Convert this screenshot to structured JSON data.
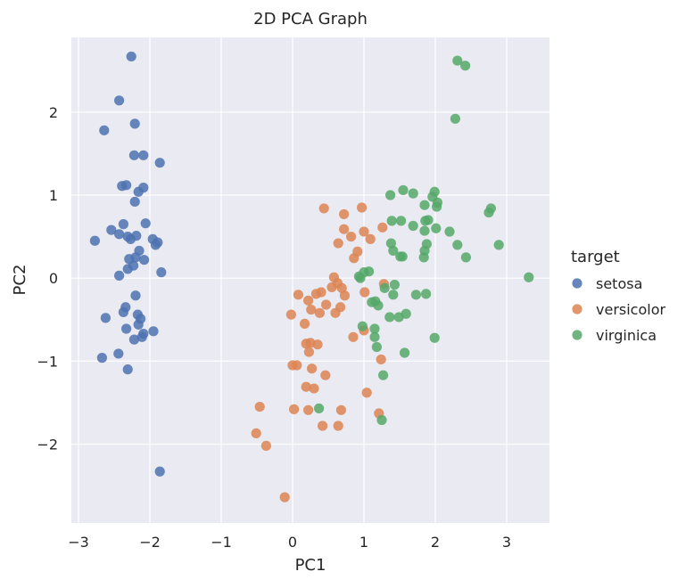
{
  "chart_data": {
    "type": "scatter",
    "title": "2D PCA Graph",
    "xlabel": "PC1",
    "ylabel": "PC2",
    "xlim": [
      -3.1,
      3.6
    ],
    "ylim": [
      -2.95,
      2.9
    ],
    "xticks": [
      -3,
      -2,
      -1,
      0,
      1,
      2,
      3
    ],
    "yticks": [
      -2,
      -1,
      0,
      1,
      2
    ],
    "xtick_labels": [
      "−3",
      "−2",
      "−1",
      "0",
      "1",
      "2",
      "3"
    ],
    "ytick_labels": [
      "−2",
      "−1",
      "0",
      "1",
      "2"
    ],
    "grid": true,
    "legend": {
      "title": "target",
      "placement": "right"
    },
    "series": [
      {
        "name": "setosa",
        "color": "#4c72b0",
        "points": [
          [
            -2.26,
            2.67
          ],
          [
            -2.43,
            2.14
          ],
          [
            -2.64,
            1.78
          ],
          [
            -2.21,
            1.86
          ],
          [
            -2.22,
            1.48
          ],
          [
            -2.09,
            1.48
          ],
          [
            -1.86,
            1.39
          ],
          [
            -2.39,
            1.11
          ],
          [
            -2.33,
            1.12
          ],
          [
            -2.16,
            1.04
          ],
          [
            -2.09,
            1.09
          ],
          [
            -2.21,
            0.92
          ],
          [
            -2.37,
            0.65
          ],
          [
            -2.54,
            0.58
          ],
          [
            -2.06,
            0.66
          ],
          [
            -2.43,
            0.53
          ],
          [
            -2.27,
            0.47
          ],
          [
            -2.19,
            0.51
          ],
          [
            -2.31,
            0.5
          ],
          [
            -1.96,
            0.47
          ],
          [
            -2.77,
            0.45
          ],
          [
            -1.89,
            0.43
          ],
          [
            -1.92,
            0.4
          ],
          [
            -2.15,
            0.33
          ],
          [
            -2.2,
            0.25
          ],
          [
            -2.29,
            0.23
          ],
          [
            -2.08,
            0.22
          ],
          [
            -2.23,
            0.15
          ],
          [
            -2.31,
            0.11
          ],
          [
            -2.43,
            0.03
          ],
          [
            -1.84,
            0.07
          ],
          [
            -2.2,
            -0.21
          ],
          [
            -2.34,
            -0.35
          ],
          [
            -2.37,
            -0.41
          ],
          [
            -2.62,
            -0.48
          ],
          [
            -2.17,
            -0.44
          ],
          [
            -2.13,
            -0.49
          ],
          [
            -2.16,
            -0.56
          ],
          [
            -2.33,
            -0.61
          ],
          [
            -1.95,
            -0.64
          ],
          [
            -2.09,
            -0.67
          ],
          [
            -2.11,
            -0.71
          ],
          [
            -2.22,
            -0.74
          ],
          [
            -2.44,
            -0.91
          ],
          [
            -2.67,
            -0.96
          ],
          [
            -2.31,
            -1.1
          ],
          [
            -1.86,
            -2.33
          ]
        ]
      },
      {
        "name": "versicolor",
        "color": "#dd8452",
        "points": [
          [
            0.44,
            0.84
          ],
          [
            0.97,
            0.85
          ],
          [
            0.72,
            0.77
          ],
          [
            1.26,
            0.61
          ],
          [
            0.72,
            0.59
          ],
          [
            1.0,
            0.56
          ],
          [
            1.09,
            0.47
          ],
          [
            0.82,
            0.5
          ],
          [
            0.64,
            0.42
          ],
          [
            0.91,
            0.32
          ],
          [
            0.86,
            0.24
          ],
          [
            0.58,
            0.01
          ],
          [
            0.63,
            -0.06
          ],
          [
            0.55,
            -0.11
          ],
          [
            0.69,
            -0.12
          ],
          [
            0.4,
            -0.17
          ],
          [
            0.33,
            -0.19
          ],
          [
            0.08,
            -0.2
          ],
          [
            1.28,
            -0.07
          ],
          [
            1.01,
            -0.17
          ],
          [
            0.73,
            -0.21
          ],
          [
            0.22,
            -0.27
          ],
          [
            0.47,
            -0.32
          ],
          [
            0.67,
            -0.35
          ],
          [
            0.26,
            -0.38
          ],
          [
            0.38,
            -0.42
          ],
          [
            0.6,
            -0.42
          ],
          [
            -0.02,
            -0.44
          ],
          [
            0.17,
            -0.55
          ],
          [
            0.25,
            -0.78
          ],
          [
            0.35,
            -0.8
          ],
          [
            0.19,
            -0.79
          ],
          [
            1.0,
            -0.63
          ],
          [
            0.85,
            -0.71
          ],
          [
            1.24,
            -0.98
          ],
          [
            0.23,
            -0.89
          ],
          [
            0.06,
            -1.05
          ],
          [
            0.0,
            -1.05
          ],
          [
            0.27,
            -1.09
          ],
          [
            0.46,
            -1.17
          ],
          [
            0.19,
            -1.31
          ],
          [
            0.3,
            -1.33
          ],
          [
            1.04,
            -1.38
          ],
          [
            0.02,
            -1.58
          ],
          [
            0.22,
            -1.59
          ],
          [
            0.68,
            -1.59
          ],
          [
            -0.46,
            -1.55
          ],
          [
            1.21,
            -1.63
          ],
          [
            0.42,
            -1.78
          ],
          [
            0.64,
            -1.78
          ],
          [
            -0.51,
            -1.87
          ],
          [
            -0.37,
            -2.02
          ],
          [
            -0.11,
            -2.64
          ]
        ]
      },
      {
        "name": "virginica",
        "color": "#55a868",
        "points": [
          [
            2.31,
            2.62
          ],
          [
            2.42,
            2.56
          ],
          [
            2.28,
            1.92
          ],
          [
            1.55,
            1.06
          ],
          [
            1.69,
            1.02
          ],
          [
            1.99,
            1.04
          ],
          [
            1.37,
            1.0
          ],
          [
            1.96,
            0.98
          ],
          [
            2.03,
            0.91
          ],
          [
            1.85,
            0.88
          ],
          [
            2.02,
            0.86
          ],
          [
            2.78,
            0.84
          ],
          [
            2.75,
            0.79
          ],
          [
            1.9,
            0.7
          ],
          [
            1.86,
            0.69
          ],
          [
            1.39,
            0.69
          ],
          [
            1.52,
            0.69
          ],
          [
            1.69,
            0.63
          ],
          [
            2.01,
            0.6
          ],
          [
            1.85,
            0.57
          ],
          [
            2.2,
            0.56
          ],
          [
            2.31,
            0.4
          ],
          [
            2.89,
            0.4
          ],
          [
            1.88,
            0.41
          ],
          [
            1.38,
            0.42
          ],
          [
            1.41,
            0.33
          ],
          [
            1.85,
            0.33
          ],
          [
            1.51,
            0.26
          ],
          [
            1.54,
            0.26
          ],
          [
            2.43,
            0.25
          ],
          [
            1.84,
            0.25
          ],
          [
            1.07,
            0.08
          ],
          [
            0.93,
            0.02
          ],
          [
            1.0,
            0.07
          ],
          [
            0.95,
            0.0
          ],
          [
            1.43,
            -0.08
          ],
          [
            1.29,
            -0.12
          ],
          [
            3.31,
            0.01
          ],
          [
            1.41,
            -0.2
          ],
          [
            1.73,
            -0.2
          ],
          [
            1.87,
            -0.19
          ],
          [
            1.16,
            -0.28
          ],
          [
            1.11,
            -0.29
          ],
          [
            1.2,
            -0.33
          ],
          [
            1.59,
            -0.43
          ],
          [
            1.49,
            -0.47
          ],
          [
            1.36,
            -0.47
          ],
          [
            0.98,
            -0.58
          ],
          [
            1.15,
            -0.61
          ],
          [
            1.99,
            -0.72
          ],
          [
            1.15,
            -0.71
          ],
          [
            1.18,
            -0.83
          ],
          [
            1.57,
            -0.9
          ],
          [
            1.27,
            -1.17
          ],
          [
            0.37,
            -1.57
          ],
          [
            1.25,
            -1.71
          ]
        ]
      }
    ]
  }
}
